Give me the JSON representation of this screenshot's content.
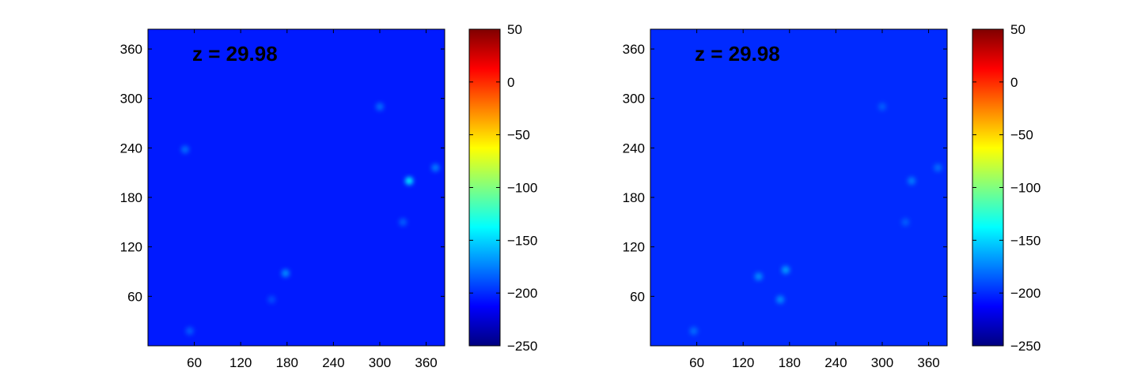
{
  "chart_data": [
    {
      "type": "heatmap",
      "annotation": "z = 29.98",
      "xticks": [
        60,
        120,
        180,
        240,
        300,
        360
      ],
      "yticks": [
        60,
        120,
        180,
        240,
        300,
        360
      ],
      "xlim": [
        0,
        384
      ],
      "ylim": [
        0,
        384
      ],
      "color_range": [
        -250,
        50
      ],
      "colorbar_ticks": [
        "50",
        "0",
        "−50",
        "−100",
        "−150",
        "−200",
        "−250"
      ],
      "colorbar_tick_values": [
        50,
        0,
        -50,
        -100,
        -150,
        -200,
        -250
      ],
      "background_value": -205,
      "colormap": "jet",
      "bright_spots": [
        {
          "x": 338,
          "y": 200,
          "value": -140
        },
        {
          "x": 178,
          "y": 88,
          "value": -170
        },
        {
          "x": 48,
          "y": 238,
          "value": -180
        },
        {
          "x": 300,
          "y": 290,
          "value": -180
        },
        {
          "x": 372,
          "y": 216,
          "value": -175
        },
        {
          "x": 54,
          "y": 18,
          "value": -185
        },
        {
          "x": 330,
          "y": 150,
          "value": -185
        },
        {
          "x": 160,
          "y": 56,
          "value": -190
        }
      ]
    },
    {
      "type": "heatmap",
      "annotation": "z = 29.98",
      "xticks": [
        60,
        120,
        180,
        240,
        300,
        360
      ],
      "yticks": [
        60,
        120,
        180,
        240,
        300,
        360
      ],
      "xlim": [
        0,
        384
      ],
      "ylim": [
        0,
        384
      ],
      "color_range": [
        -250,
        50
      ],
      "colorbar_ticks": [
        "50",
        "0",
        "−50",
        "−100",
        "−150",
        "−200",
        "−250"
      ],
      "colorbar_tick_values": [
        50,
        0,
        -50,
        -100,
        -150,
        -200,
        -250
      ],
      "background_value": -200,
      "colormap": "jet",
      "bright_spots": [
        {
          "x": 175,
          "y": 92,
          "value": -165
        },
        {
          "x": 140,
          "y": 84,
          "value": -170
        },
        {
          "x": 168,
          "y": 56,
          "value": -170
        },
        {
          "x": 338,
          "y": 200,
          "value": -175
        },
        {
          "x": 56,
          "y": 18,
          "value": -180
        },
        {
          "x": 300,
          "y": 290,
          "value": -185
        },
        {
          "x": 330,
          "y": 150,
          "value": -185
        },
        {
          "x": 372,
          "y": 216,
          "value": -180
        }
      ]
    }
  ]
}
